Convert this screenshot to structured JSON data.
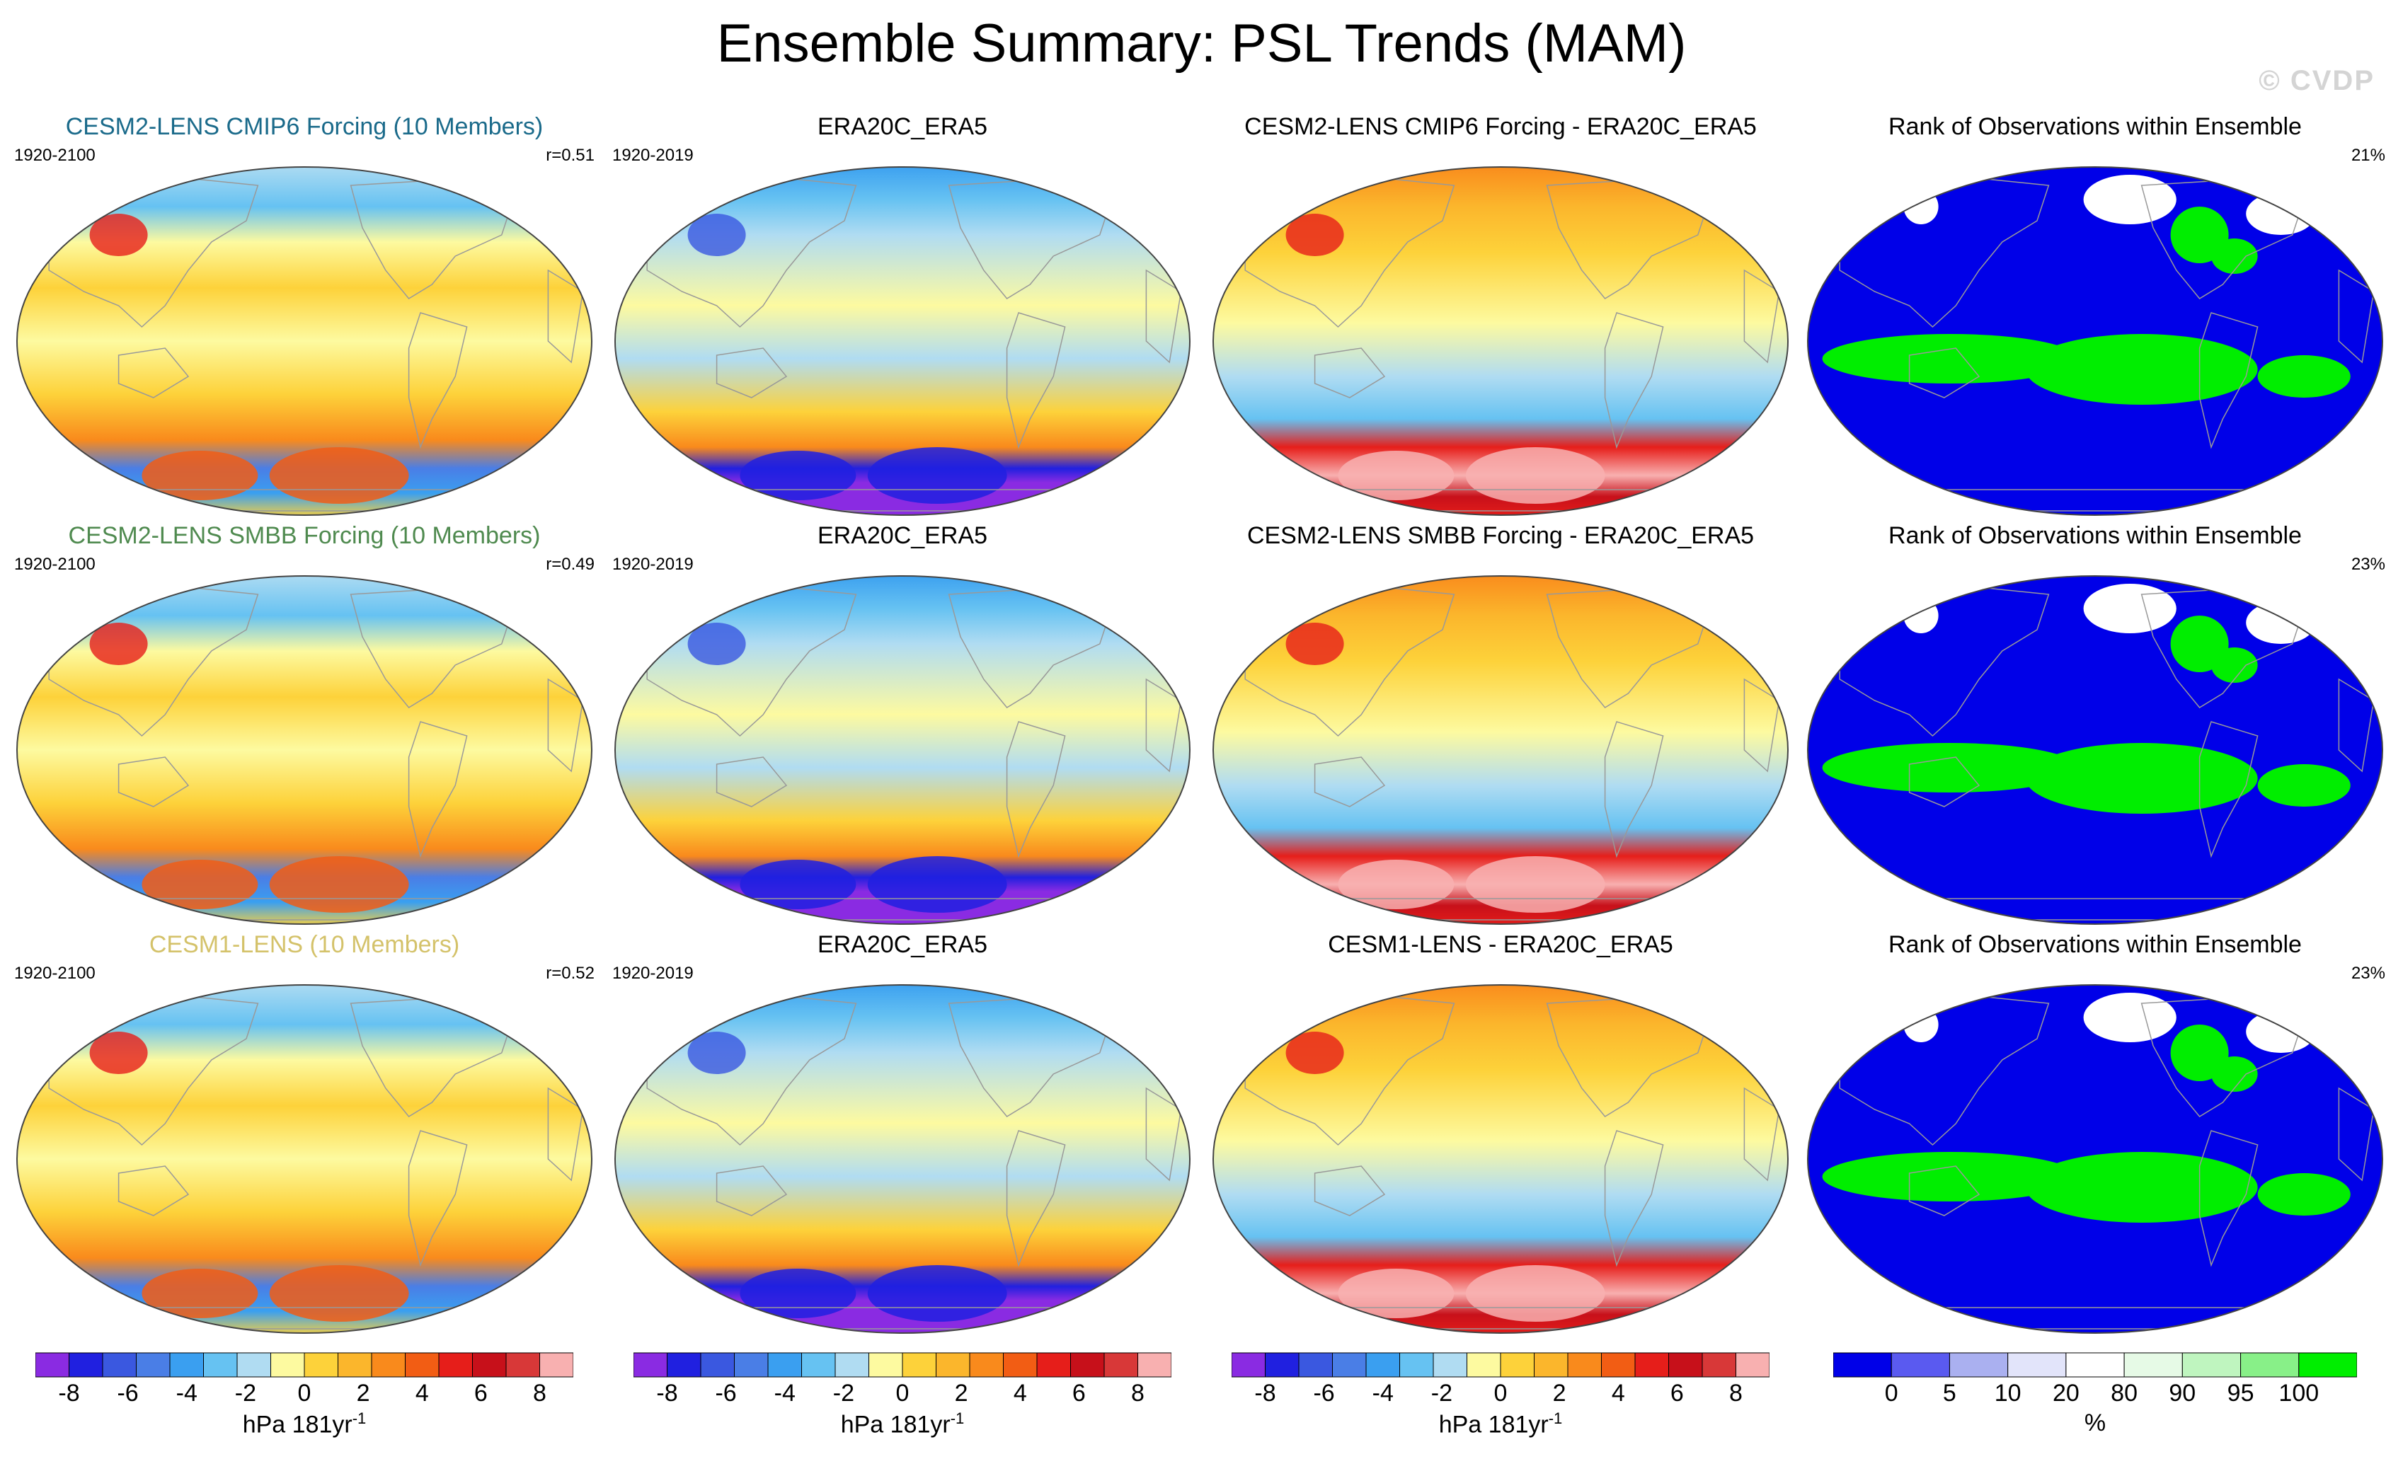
{
  "title": "Ensemble Summary: PSL Trends (MAM)",
  "watermark": "© CVDP",
  "colors": {
    "model_title_1": "#1a6a8a",
    "model_title_2": "#4f8a4f",
    "model_title_3": "#d4c26a",
    "ocean_rank": "#0000e8",
    "green_rank": "#00ee00",
    "land": "#999999"
  },
  "rows": [
    {
      "model": {
        "title": "CESM2-LENS CMIP6 Forcing (10 Members)",
        "years": "1920-2100",
        "corr": "r=0.51"
      },
      "obs": {
        "title": "ERA20C_ERA5",
        "years": "1920-2019"
      },
      "diff": {
        "title": "CESM2-LENS CMIP6 Forcing - ERA20C_ERA5"
      },
      "rank": {
        "title": "Rank of Observations within Ensemble",
        "pct": "21%"
      }
    },
    {
      "model": {
        "title": "CESM2-LENS SMBB Forcing (10 Members)",
        "years": "1920-2100",
        "corr": "r=0.49"
      },
      "obs": {
        "title": "ERA20C_ERA5",
        "years": "1920-2019"
      },
      "diff": {
        "title": "CESM2-LENS SMBB Forcing - ERA20C_ERA5"
      },
      "rank": {
        "title": "Rank of Observations within Ensemble",
        "pct": "23%"
      }
    },
    {
      "model": {
        "title": "CESM1-LENS (10 Members)",
        "years": "1920-2100",
        "corr": "r=0.52"
      },
      "obs": {
        "title": "ERA20C_ERA5",
        "years": "1920-2019"
      },
      "diff": {
        "title": "CESM1-LENS - ERA20C_ERA5"
      },
      "rank": {
        "title": "Rank of Observations within Ensemble",
        "pct": "23%"
      }
    }
  ],
  "chart_data": {
    "type": "heatmap",
    "projection": "robinson-like global maps, 3 rows x 4 columns",
    "trend_colorbar": {
      "colors": [
        "#8a2be2",
        "#2020e0",
        "#3a58e0",
        "#4a7ee6",
        "#3a9ff0",
        "#66c2f2",
        "#b0dcf2",
        "#fdfaa0",
        "#fdd23a",
        "#fbb62c",
        "#f98a1c",
        "#f25d14",
        "#e61e1a",
        "#c7101a",
        "#d83838",
        "#f8b0b0"
      ],
      "ticks": [
        "-8",
        "-6",
        "-4",
        "-2",
        "0",
        "2",
        "4",
        "6",
        "8"
      ],
      "tick_bounds": [
        -8,
        8
      ],
      "unit": "hPa 181yr",
      "unit_exp": "-1",
      "obs_unit": "hPa 181yr",
      "obs_unit_exp": "-1",
      "diff_unit": "hPa 181yr",
      "diff_unit_exp": "-1"
    },
    "rank_colorbar": {
      "colors": [
        "#0000e8",
        "#5a5af0",
        "#aab0f0",
        "#e2e4fa",
        "#ffffff",
        "#e6fae6",
        "#bff5bf",
        "#88f088",
        "#00ee00"
      ],
      "ticks": [
        "0",
        "5",
        "10",
        "20",
        "80",
        "90",
        "95",
        "100"
      ],
      "tick_positions": [
        1,
        2,
        3,
        4,
        5,
        6,
        7,
        8
      ],
      "unit": "%"
    }
  }
}
